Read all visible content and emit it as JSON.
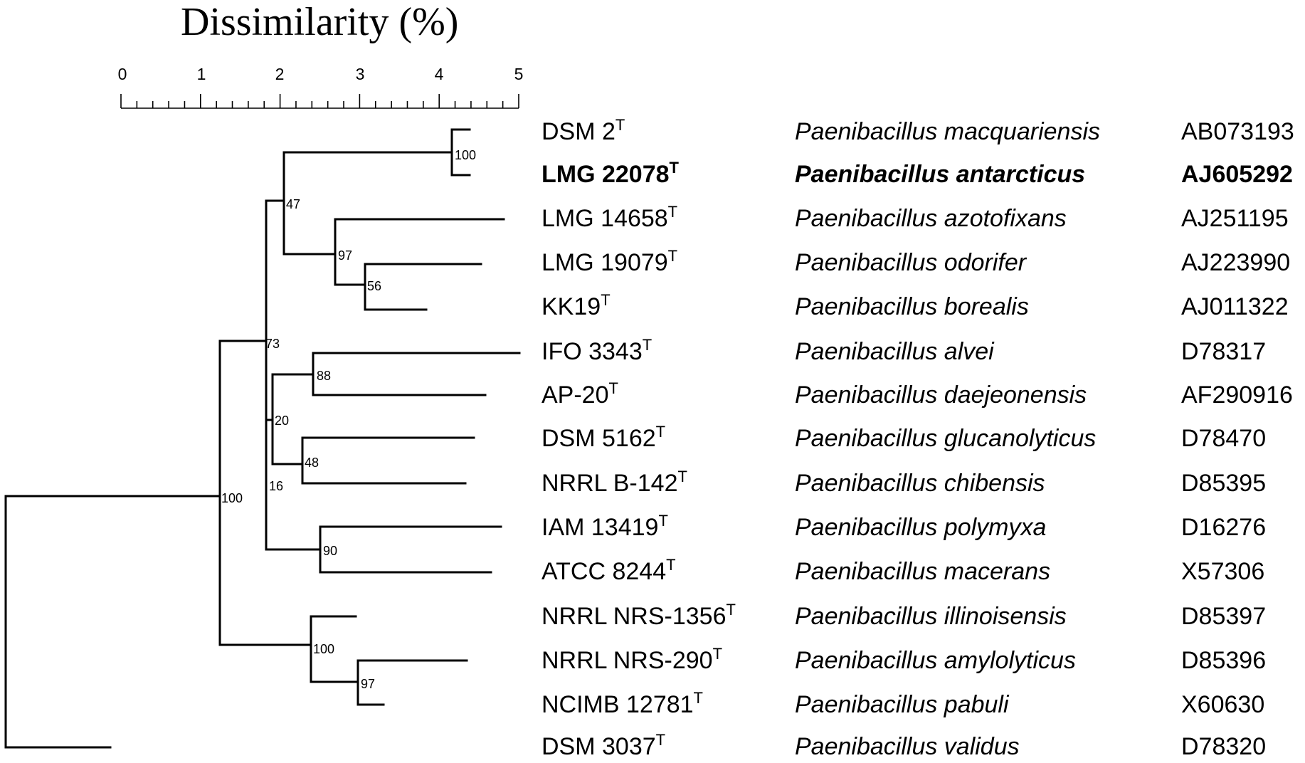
{
  "title": "Dissimilarity (%)",
  "scale": {
    "ticks": [
      "0",
      "1",
      "2",
      "3",
      "4",
      "5"
    ]
  },
  "taxa": [
    {
      "strain": "DSM 2",
      "sup": "T",
      "species": "Paenibacillus macquariensis",
      "accession": "AB073193",
      "highlight": false
    },
    {
      "strain": "LMG 22078",
      "sup": "T",
      "species": "Paenibacillus antarcticus",
      "accession": "AJ605292",
      "highlight": true
    },
    {
      "strain": "LMG 14658",
      "sup": "T",
      "species": "Paenibacillus azotofixans",
      "accession": "AJ251195",
      "highlight": false
    },
    {
      "strain": "LMG 19079",
      "sup": "T",
      "species": "Paenibacillus odorifer",
      "accession": "AJ223990",
      "highlight": false
    },
    {
      "strain": "KK19",
      "sup": "T",
      "species": "Paenibacillus borealis",
      "accession": "AJ011322",
      "highlight": false
    },
    {
      "strain": "IFO 3343",
      "sup": "T",
      "species": "Paenibacillus alvei",
      "accession": "D78317",
      "highlight": false
    },
    {
      "strain": "AP-20",
      "sup": "T",
      "species": "Paenibacillus daejeonensis",
      "accession": "AF290916",
      "highlight": false
    },
    {
      "strain": "DSM 5162",
      "sup": "T",
      "species": "Paenibacillus glucanolyticus",
      "accession": "D78470",
      "highlight": false
    },
    {
      "strain": "NRRL B-142",
      "sup": "T",
      "species": "Paenibacillus chibensis",
      "accession": "D85395",
      "highlight": false
    },
    {
      "strain": "IAM 13419",
      "sup": "T",
      "species": "Paenibacillus polymyxa",
      "accession": "D16276",
      "highlight": false
    },
    {
      "strain": "ATCC 8244",
      "sup": "T",
      "species": "Paenibacillus macerans",
      "accession": "X57306",
      "highlight": false
    },
    {
      "strain": "NRRL NRS-1356",
      "sup": "T",
      "species": "Paenibacillus illinoisensis",
      "accession": "D85397",
      "highlight": false
    },
    {
      "strain": "NRRL NRS-290",
      "sup": "T",
      "species": "Paenibacillus amylolyticus",
      "accession": "D85396",
      "highlight": false
    },
    {
      "strain": "NCIMB 12781",
      "sup": "T",
      "species": "Paenibacillus pabuli",
      "accession": "X60630",
      "highlight": false
    },
    {
      "strain": "DSM 3037",
      "sup": "T",
      "species": "Paenibacillus validus",
      "accession": "D78320",
      "highlight": false
    }
  ],
  "bootstrap": [
    "100",
    "47",
    "97",
    "56",
    "73",
    "88",
    "20",
    "48",
    "16",
    "90",
    "100",
    "100",
    "97"
  ]
}
